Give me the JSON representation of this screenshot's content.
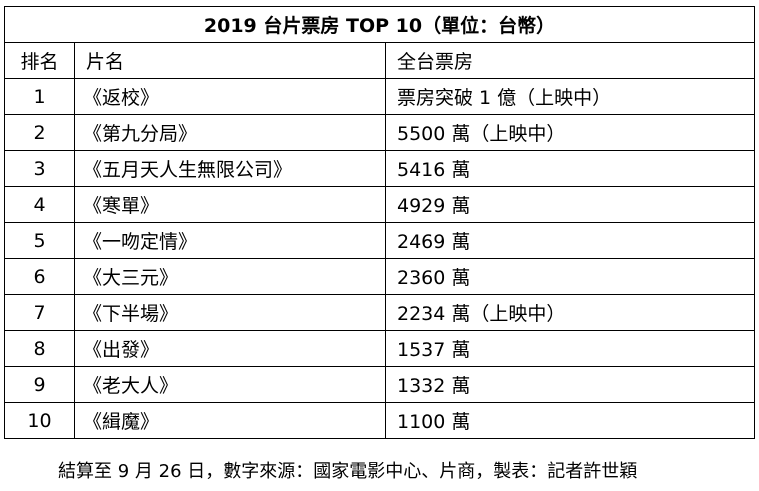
{
  "table": {
    "caption": "2019 台片票房 TOP 10（單位：台幣）",
    "headers": {
      "rank": "排名",
      "title": "片名",
      "gross": "全台票房"
    },
    "rows": [
      {
        "rank": "1",
        "title": "《返校》",
        "gross": "票房突破 1 億（上映中）"
      },
      {
        "rank": "2",
        "title": "《第九分局》",
        "gross": "5500 萬（上映中）"
      },
      {
        "rank": "3",
        "title": "《五月天人生無限公司》",
        "gross": "5416 萬"
      },
      {
        "rank": "4",
        "title": "《寒單》",
        "gross": "4929 萬"
      },
      {
        "rank": "5",
        "title": "《一吻定情》",
        "gross": "2469 萬"
      },
      {
        "rank": "6",
        "title": "《大三元》",
        "gross": "2360 萬"
      },
      {
        "rank": "7",
        "title": "《下半場》",
        "gross": "2234 萬（上映中）"
      },
      {
        "rank": "8",
        "title": "《出發》",
        "gross": "1537 萬"
      },
      {
        "rank": "9",
        "title": "《老大人》",
        "gross": "1332 萬"
      },
      {
        "rank": "10",
        "title": "《緝魔》",
        "gross": "1100 萬"
      }
    ]
  },
  "footnote": "結算至 9 月 26 日，數字來源：國家電影中心、片商，製表：記者許世穎"
}
